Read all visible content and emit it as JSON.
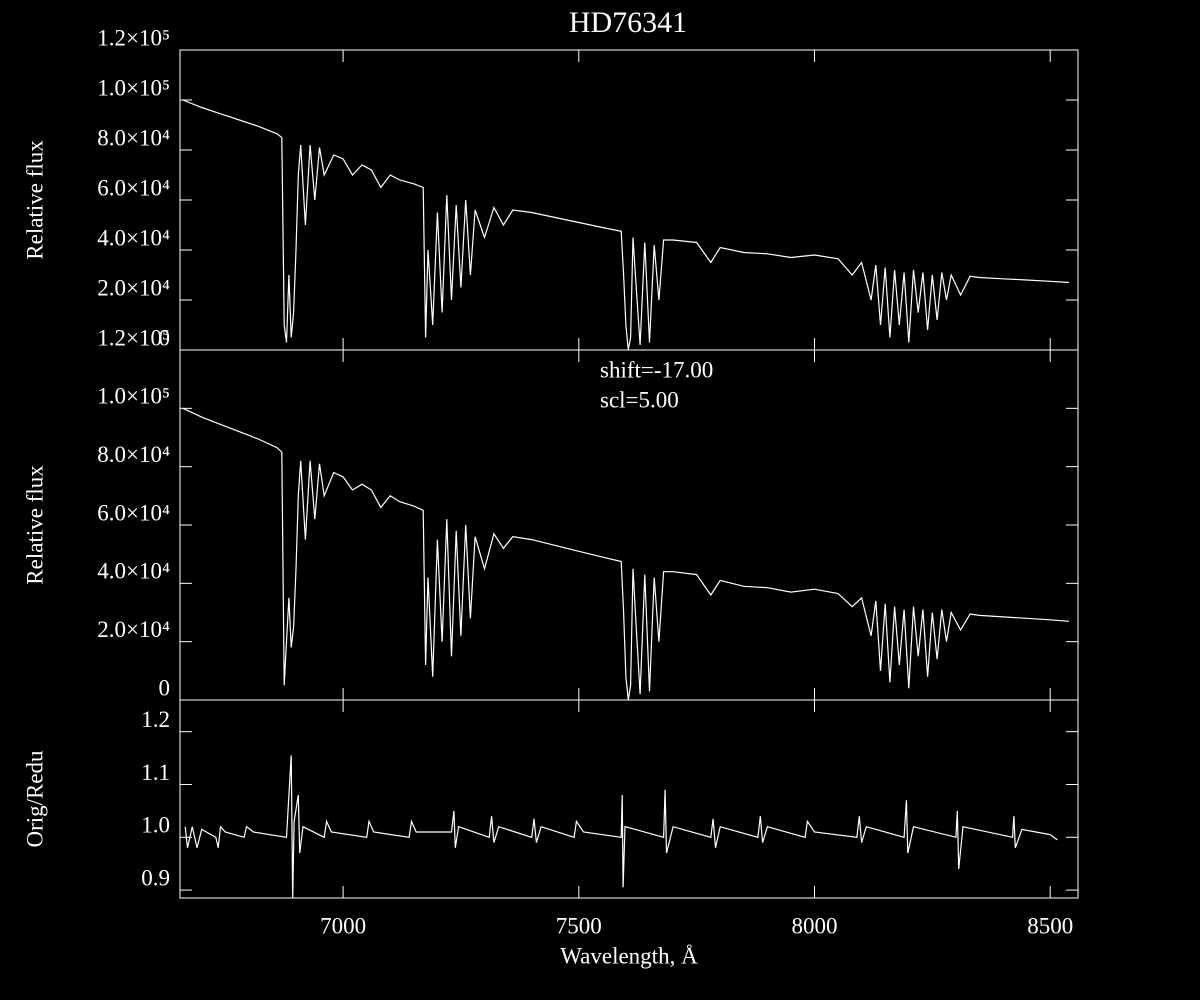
{
  "chart_data": [
    {
      "type": "line",
      "title": "HD76341",
      "ylabel": "Relative flux",
      "color": "#ffffff",
      "xlim": [
        6654,
        8559
      ],
      "ylim": [
        0,
        120000
      ],
      "yticks": [
        0,
        {
          "value": 20000,
          "label": "2.0×10⁴"
        },
        {
          "value": 40000,
          "label": "4.0×10⁴"
        },
        {
          "value": 60000,
          "label": "6.0×10⁴"
        },
        {
          "value": 80000,
          "label": "8.0×10⁴"
        },
        {
          "value": 100000,
          "label": "1.0×10⁵"
        },
        {
          "value": 120000,
          "label": "1.2×10⁵"
        }
      ],
      "x": [
        6660,
        6700,
        6740,
        6780,
        6820,
        6860,
        6870,
        6875,
        6880,
        6885,
        6890,
        6895,
        6900,
        6905,
        6910,
        6920,
        6930,
        6940,
        6950,
        6960,
        6980,
        7000,
        7020,
        7040,
        7060,
        7080,
        7100,
        7120,
        7150,
        7170,
        7175,
        7180,
        7190,
        7200,
        7210,
        7220,
        7230,
        7240,
        7250,
        7260,
        7270,
        7280,
        7300,
        7320,
        7340,
        7360,
        7400,
        7450,
        7500,
        7550,
        7590,
        7595,
        7600,
        7605,
        7610,
        7615,
        7620,
        7630,
        7640,
        7650,
        7660,
        7670,
        7680,
        7700,
        7750,
        7780,
        7800,
        7850,
        7900,
        7950,
        8000,
        8050,
        8080,
        8100,
        8120,
        8130,
        8140,
        8150,
        8160,
        8170,
        8180,
        8190,
        8200,
        8210,
        8220,
        8230,
        8240,
        8250,
        8260,
        8270,
        8280,
        8290,
        8310,
        8330,
        8350,
        8400,
        8450,
        8500,
        8540
      ],
      "values": [
        100000,
        97000,
        94500,
        92000,
        89500,
        86500,
        85000,
        10000,
        3000,
        30000,
        5000,
        15000,
        40000,
        70000,
        82000,
        50000,
        82000,
        60000,
        81000,
        70000,
        78000,
        76500,
        70000,
        74000,
        72000,
        65000,
        70000,
        68000,
        66500,
        65000,
        5000,
        40000,
        10000,
        55000,
        15000,
        62000,
        20000,
        58000,
        25000,
        60000,
        30000,
        56000,
        45000,
        57000,
        50000,
        56000,
        55000,
        53000,
        51000,
        49000,
        47500,
        30000,
        10000,
        0,
        5000,
        45000,
        30000,
        2000,
        43000,
        3000,
        42000,
        20000,
        44000,
        44000,
        43000,
        35000,
        41000,
        39000,
        38500,
        37000,
        38000,
        36500,
        30000,
        35000,
        20000,
        34000,
        10000,
        33000,
        5000,
        32000,
        10000,
        31000,
        3000,
        32000,
        15000,
        31000,
        8000,
        30000,
        12000,
        31000,
        20000,
        30000,
        22000,
        29500,
        29000,
        28500,
        28000,
        27500,
        27000
      ]
    },
    {
      "type": "line",
      "ylabel": "Relative flux",
      "color": "#ffffff",
      "annotations": [
        "shift=-17.00",
        "scl=5.00"
      ],
      "xlim": [
        6654,
        8559
      ],
      "ylim": [
        0,
        120000
      ],
      "yticks": [
        0,
        {
          "value": 20000,
          "label": "2.0×10⁴"
        },
        {
          "value": 40000,
          "label": "4.0×10⁴"
        },
        {
          "value": 60000,
          "label": "6.0×10⁴"
        },
        {
          "value": 80000,
          "label": "8.0×10⁴"
        },
        {
          "value": 100000,
          "label": "1.0×10⁵"
        },
        {
          "value": 120000,
          "label": "1.2×10⁵"
        }
      ],
      "x": [
        6660,
        6700,
        6740,
        6780,
        6820,
        6860,
        6870,
        6875,
        6880,
        6885,
        6890,
        6895,
        6900,
        6905,
        6910,
        6920,
        6930,
        6940,
        6950,
        6960,
        6980,
        7000,
        7020,
        7040,
        7060,
        7080,
        7100,
        7120,
        7150,
        7170,
        7175,
        7180,
        7190,
        7200,
        7210,
        7220,
        7230,
        7240,
        7250,
        7260,
        7270,
        7280,
        7300,
        7320,
        7340,
        7360,
        7400,
        7450,
        7500,
        7550,
        7590,
        7595,
        7600,
        7605,
        7610,
        7615,
        7620,
        7630,
        7640,
        7650,
        7660,
        7670,
        7680,
        7700,
        7750,
        7780,
        7800,
        7850,
        7900,
        7950,
        8000,
        8050,
        8080,
        8100,
        8120,
        8130,
        8140,
        8150,
        8160,
        8170,
        8180,
        8190,
        8200,
        8210,
        8220,
        8230,
        8240,
        8250,
        8260,
        8270,
        8280,
        8290,
        8310,
        8330,
        8350,
        8400,
        8450,
        8500,
        8540
      ],
      "values": [
        100000,
        97000,
        94500,
        92000,
        89500,
        86500,
        85000,
        5000,
        20000,
        35000,
        18000,
        25000,
        45000,
        70000,
        82000,
        55000,
        82000,
        62000,
        81000,
        70000,
        78000,
        76500,
        72000,
        74000,
        72000,
        66000,
        70000,
        68000,
        66500,
        65000,
        12000,
        42000,
        8000,
        55000,
        20000,
        62000,
        15000,
        58000,
        22000,
        60000,
        28000,
        56000,
        45000,
        57000,
        52000,
        56000,
        55000,
        53000,
        51000,
        49000,
        47500,
        30000,
        8000,
        0,
        5000,
        45000,
        30000,
        2000,
        43000,
        3000,
        42000,
        20000,
        44000,
        44000,
        43000,
        36000,
        41000,
        39000,
        38500,
        37000,
        38000,
        36500,
        32000,
        35000,
        22000,
        34000,
        10000,
        33000,
        6000,
        32000,
        12000,
        31000,
        4000,
        32000,
        15000,
        31000,
        8000,
        30000,
        14000,
        31000,
        20000,
        30000,
        24000,
        29500,
        29000,
        28500,
        28000,
        27500,
        27000
      ]
    },
    {
      "type": "line",
      "ylabel": "Orig/Redu",
      "xlabel": "Wavelength, Å",
      "color": "#ffffff",
      "xlim": [
        6654,
        8559
      ],
      "ylim": [
        0.885,
        1.26
      ],
      "xticks": [
        7000,
        7500,
        8000,
        8500
      ],
      "yticks": [
        0.9,
        {
          "value": 1.0,
          "label": "1.0"
        },
        1.1,
        1.2
      ],
      "x": [
        6665,
        6670,
        6680,
        6690,
        6700,
        6730,
        6735,
        6740,
        6750,
        6790,
        6795,
        6810,
        6880,
        6890,
        6893,
        6896,
        6905,
        6908,
        6915,
        6960,
        6965,
        6975,
        7050,
        7055,
        7065,
        7140,
        7145,
        7155,
        7230,
        7235,
        7238,
        7245,
        7310,
        7315,
        7320,
        7330,
        7400,
        7405,
        7410,
        7420,
        7490,
        7495,
        7510,
        7590,
        7592,
        7594,
        7598,
        7620,
        7680,
        7683,
        7686,
        7700,
        7780,
        7785,
        7790,
        7800,
        7880,
        7885,
        7890,
        7900,
        7980,
        7985,
        8000,
        8090,
        8095,
        8100,
        8110,
        8190,
        8195,
        8198,
        8210,
        8300,
        8303,
        8306,
        8315,
        8420,
        8423,
        8426,
        8440,
        8500,
        8515
      ],
      "values": [
        1.02,
        0.98,
        1.02,
        0.98,
        1.015,
        1.0,
        0.98,
        1.02,
        1.01,
        1.0,
        1.02,
        1.01,
        1.0,
        1.155,
        0.885,
        1.03,
        1.08,
        0.97,
        1.02,
        1.0,
        1.03,
        1.01,
        1.0,
        1.03,
        1.01,
        1.0,
        1.03,
        1.01,
        1.01,
        1.05,
        0.98,
        1.02,
        1.0,
        1.04,
        0.99,
        1.02,
        1.0,
        1.035,
        0.99,
        1.02,
        1.0,
        1.03,
        1.01,
        1.0,
        1.08,
        0.905,
        1.02,
        1.015,
        1.0,
        1.09,
        0.97,
        1.02,
        1.0,
        1.035,
        0.98,
        1.02,
        1.0,
        1.04,
        0.99,
        1.02,
        1.0,
        1.03,
        1.01,
        1.0,
        1.04,
        0.99,
        1.02,
        1.0,
        1.07,
        0.97,
        1.02,
        1.0,
        1.05,
        0.94,
        1.02,
        1.0,
        1.04,
        0.98,
        1.015,
        1.005,
        0.995
      ]
    }
  ]
}
